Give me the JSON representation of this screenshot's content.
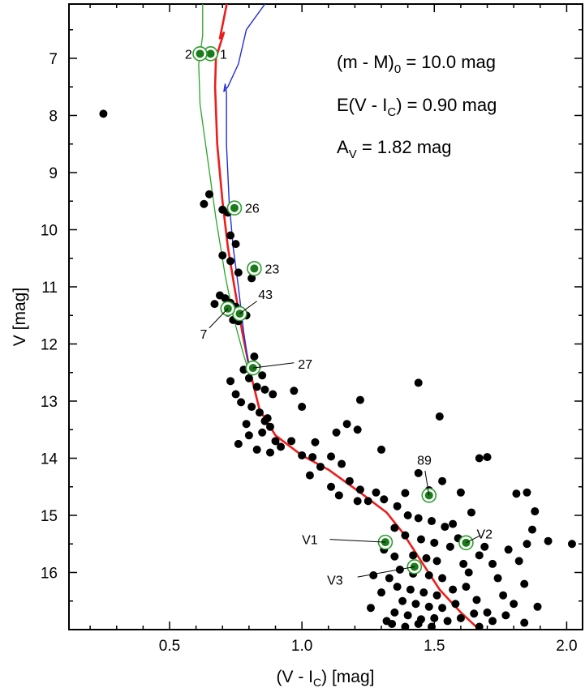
{
  "chart_data": {
    "type": "scatter",
    "title": "",
    "xlabel": "(V - I_C) [mag]",
    "ylabel": "V [mag]",
    "xlim": [
      0.12,
      2.06
    ],
    "ylim": [
      17.0,
      6.05
    ],
    "y_inverted": true,
    "xticks": [
      "0.5",
      "1.0",
      "1.5",
      "2.0"
    ],
    "xtick_values": [
      0.5,
      1.0,
      1.5,
      2.0
    ],
    "yticks": [
      "7",
      "8",
      "9",
      "10",
      "11",
      "12",
      "13",
      "14",
      "15",
      "16"
    ],
    "ytick_values": [
      7,
      8,
      9,
      10,
      11,
      12,
      13,
      14,
      15,
      16
    ],
    "annotations": {
      "distance_modulus": {
        "main": "(m - M)",
        "sub": "0",
        "rest": " = 10.0 mag"
      },
      "reddening": {
        "main": "E(V - I",
        "sub": "C",
        "rest": ") = 0.90 mag"
      },
      "extinction": {
        "main": "A",
        "sub": "V",
        "rest": " = 1.82 mag"
      }
    },
    "colors": {
      "field_star": "#000000",
      "highlight_fill": "#1b7a1b",
      "highlight_ring": "#2e9e2e",
      "isochrone_main": "#ee1c1c",
      "isochrone_blue": "#1f2fd6",
      "isochrone_green": "#2aa52a"
    },
    "field_stars": [
      [
        0.25,
        7.97
      ],
      [
        0.63,
        9.55
      ],
      [
        0.65,
        9.38
      ],
      [
        0.7,
        9.65
      ],
      [
        0.72,
        9.7
      ],
      [
        0.73,
        10.1
      ],
      [
        0.7,
        10.45
      ],
      [
        0.73,
        10.55
      ],
      [
        0.75,
        10.25
      ],
      [
        0.76,
        10.75
      ],
      [
        0.67,
        11.3
      ],
      [
        0.69,
        11.15
      ],
      [
        0.71,
        11.2
      ],
      [
        0.73,
        11.28
      ],
      [
        0.75,
        11.35
      ],
      [
        0.72,
        11.45
      ],
      [
        0.77,
        11.42
      ],
      [
        0.79,
        11.5
      ],
      [
        0.74,
        11.58
      ],
      [
        0.76,
        11.6
      ],
      [
        0.81,
        10.85
      ],
      [
        0.82,
        12.22
      ],
      [
        0.78,
        12.45
      ],
      [
        0.8,
        12.6
      ],
      [
        0.83,
        12.4
      ],
      [
        0.85,
        12.55
      ],
      [
        0.73,
        12.65
      ],
      [
        0.75,
        12.88
      ],
      [
        0.77,
        13.02
      ],
      [
        0.83,
        12.75
      ],
      [
        0.86,
        12.8
      ],
      [
        0.89,
        12.88
      ],
      [
        0.81,
        13.1
      ],
      [
        0.84,
        13.2
      ],
      [
        0.87,
        13.3
      ],
      [
        0.79,
        13.4
      ],
      [
        0.76,
        13.75
      ],
      [
        0.8,
        13.6
      ],
      [
        0.85,
        13.55
      ],
      [
        0.88,
        13.45
      ],
      [
        0.9,
        13.7
      ],
      [
        0.83,
        13.85
      ],
      [
        0.88,
        13.9
      ],
      [
        0.92,
        13.8
      ],
      [
        0.96,
        13.7
      ],
      [
        0.86,
        13.35
      ],
      [
        0.97,
        12.82
      ],
      [
        1.0,
        13.1
      ],
      [
        1.0,
        13.95
      ],
      [
        1.04,
        13.98
      ],
      [
        1.07,
        14.15
      ],
      [
        1.11,
        13.97
      ],
      [
        1.15,
        14.1
      ],
      [
        1.03,
        14.3
      ],
      [
        1.13,
        13.55
      ],
      [
        1.17,
        13.4
      ],
      [
        1.21,
        13.5
      ],
      [
        1.05,
        13.72
      ],
      [
        1.11,
        14.5
      ],
      [
        1.14,
        14.65
      ],
      [
        1.18,
        14.4
      ],
      [
        1.22,
        14.55
      ],
      [
        1.28,
        14.6
      ],
      [
        1.31,
        14.72
      ],
      [
        1.25,
        14.75
      ],
      [
        1.21,
        14.75
      ],
      [
        1.3,
        13.85
      ],
      [
        1.22,
        12.98
      ],
      [
        1.44,
        12.68
      ],
      [
        1.52,
        13.27
      ],
      [
        1.36,
        14.84
      ],
      [
        1.44,
        14.26
      ],
      [
        1.39,
        14.61
      ],
      [
        1.48,
        14.56
      ],
      [
        1.53,
        14.4
      ],
      [
        1.4,
        15.0
      ],
      [
        1.44,
        15.05
      ],
      [
        1.49,
        15.1
      ],
      [
        1.54,
        15.2
      ],
      [
        1.35,
        15.22
      ],
      [
        1.39,
        15.35
      ],
      [
        1.45,
        15.42
      ],
      [
        1.5,
        15.48
      ],
      [
        1.31,
        15.6
      ],
      [
        1.35,
        15.72
      ],
      [
        1.42,
        15.7
      ],
      [
        1.47,
        15.75
      ],
      [
        1.51,
        15.8
      ],
      [
        1.37,
        15.95
      ],
      [
        1.42,
        16.02
      ],
      [
        1.48,
        16.05
      ],
      [
        1.53,
        16.1
      ],
      [
        1.33,
        16.1
      ],
      [
        1.36,
        16.25
      ],
      [
        1.41,
        16.3
      ],
      [
        1.46,
        16.35
      ],
      [
        1.51,
        16.4
      ],
      [
        1.57,
        16.3
      ],
      [
        1.38,
        16.5
      ],
      [
        1.43,
        16.55
      ],
      [
        1.48,
        16.6
      ],
      [
        1.53,
        16.62
      ],
      [
        1.58,
        16.55
      ],
      [
        1.35,
        16.7
      ],
      [
        1.4,
        16.75
      ],
      [
        1.45,
        16.82
      ],
      [
        1.5,
        16.8
      ],
      [
        1.55,
        16.85
      ],
      [
        1.6,
        16.8
      ],
      [
        1.65,
        16.72
      ],
      [
        1.34,
        16.9
      ],
      [
        1.39,
        16.95
      ],
      [
        1.44,
        16.9
      ],
      [
        1.49,
        16.95
      ],
      [
        1.27,
        16.05
      ],
      [
        1.3,
        16.35
      ],
      [
        1.26,
        16.62
      ],
      [
        1.32,
        16.85
      ],
      [
        1.56,
        15.55
      ],
      [
        1.59,
        15.4
      ],
      [
        1.61,
        15.85
      ],
      [
        1.63,
        16.0
      ],
      [
        1.67,
        15.7
      ],
      [
        1.69,
        15.55
      ],
      [
        1.72,
        15.85
      ],
      [
        1.74,
        16.1
      ],
      [
        1.78,
        15.6
      ],
      [
        1.82,
        15.8
      ],
      [
        1.85,
        15.5
      ],
      [
        1.87,
        15.25
      ],
      [
        1.76,
        16.4
      ],
      [
        1.8,
        16.55
      ],
      [
        1.84,
        16.2
      ],
      [
        1.7,
        16.7
      ],
      [
        1.67,
        16.95
      ],
      [
        1.72,
        16.85
      ],
      [
        1.77,
        16.75
      ],
      [
        1.89,
        16.6
      ],
      [
        1.84,
        16.88
      ],
      [
        1.93,
        15.45
      ],
      [
        2.02,
        15.5
      ],
      [
        1.81,
        14.62
      ],
      [
        1.85,
        14.6
      ],
      [
        1.88,
        14.93
      ],
      [
        1.67,
        14.0
      ],
      [
        1.7,
        13.98
      ],
      [
        1.6,
        14.6
      ],
      [
        1.64,
        14.95
      ],
      [
        1.57,
        15.15
      ],
      [
        1.62,
        16.25
      ],
      [
        1.66,
        16.48
      ]
    ],
    "highlighted_stars": [
      {
        "label": "1",
        "x": 0.655,
        "y": 6.92
      },
      {
        "label": "2",
        "x": 0.615,
        "y": 6.92
      },
      {
        "label": "26",
        "x": 0.745,
        "y": 9.62
      },
      {
        "label": "23",
        "x": 0.82,
        "y": 10.68
      },
      {
        "label": "43",
        "x": 0.765,
        "y": 11.47
      },
      {
        "label": "7",
        "x": 0.72,
        "y": 11.38
      },
      {
        "label": "27",
        "x": 0.815,
        "y": 12.42
      },
      {
        "label": "89",
        "x": 1.48,
        "y": 14.65
      },
      {
        "label": "V1",
        "x": 1.315,
        "y": 15.47
      },
      {
        "label": "V2",
        "x": 1.62,
        "y": 15.48
      },
      {
        "label": "V3",
        "x": 1.425,
        "y": 15.9
      }
    ],
    "isochrones": [
      {
        "color_key": "isochrone_main",
        "width": 2.6,
        "points": [
          [
            0.716,
            6.05
          ],
          [
            0.69,
            6.65
          ],
          [
            0.705,
            6.55
          ],
          [
            0.675,
            7.0
          ],
          [
            0.672,
            7.5
          ],
          [
            0.68,
            8.5
          ],
          [
            0.7,
            9.5
          ],
          [
            0.72,
            10.3
          ],
          [
            0.745,
            11.0
          ],
          [
            0.775,
            11.8
          ],
          [
            0.805,
            12.5
          ],
          [
            0.84,
            13.15
          ],
          [
            0.9,
            13.6
          ],
          [
            1.0,
            13.95
          ],
          [
            1.1,
            14.2
          ],
          [
            1.22,
            14.6
          ],
          [
            1.32,
            14.95
          ],
          [
            1.38,
            15.3
          ],
          [
            1.45,
            15.8
          ],
          [
            1.52,
            16.3
          ],
          [
            1.6,
            16.7
          ],
          [
            1.67,
            17.0
          ]
        ]
      },
      {
        "color_key": "isochrone_blue",
        "width": 1.4,
        "points": [
          [
            0.86,
            6.05
          ],
          [
            0.79,
            6.5
          ],
          [
            0.76,
            7.1
          ],
          [
            0.72,
            7.5
          ],
          [
            0.705,
            7.58
          ],
          [
            0.71,
            7.45
          ],
          [
            0.715,
            7.6
          ],
          [
            0.715,
            8.5
          ],
          [
            0.725,
            9.5
          ],
          [
            0.74,
            10.3
          ],
          [
            0.76,
            11.0
          ],
          [
            0.78,
            11.8
          ],
          [
            0.8,
            12.4
          ]
        ]
      },
      {
        "color_key": "isochrone_green",
        "width": 1.3,
        "points": [
          [
            0.625,
            6.05
          ],
          [
            0.625,
            6.6
          ],
          [
            0.61,
            7.1
          ],
          [
            0.615,
            7.8
          ],
          [
            0.645,
            8.8
          ],
          [
            0.675,
            9.8
          ],
          [
            0.71,
            10.8
          ],
          [
            0.745,
            11.6
          ],
          [
            0.78,
            12.2
          ],
          [
            0.8,
            12.5
          ]
        ]
      }
    ],
    "label_positions_unit": "data",
    "label_positions": {
      "1": {
        "tx": 0.69,
        "ty": 6.92,
        "anchor": "start"
      },
      "2": {
        "tx": 0.585,
        "ty": 6.92,
        "anchor": "end"
      },
      "26": {
        "tx": 0.785,
        "ty": 9.62,
        "anchor": "start"
      },
      "23": {
        "tx": 0.86,
        "ty": 10.68,
        "anchor": "start"
      },
      "43": {
        "tx": 0.835,
        "ty": 11.13,
        "anchor": "start",
        "lx": 0.83,
        "ly": 11.25
      },
      "7": {
        "tx": 0.615,
        "ty": 11.82,
        "anchor": "start",
        "lx": 0.65,
        "ly": 11.72
      },
      "27": {
        "tx": 0.985,
        "ty": 12.35,
        "anchor": "start",
        "lx": 0.97,
        "ly": 12.33
      },
      "89": {
        "tx": 1.435,
        "ty": 14.03,
        "anchor": "start",
        "lx": 1.465,
        "ly": 14.22
      },
      "V1": {
        "tx": 1.0,
        "ty": 15.42,
        "anchor": "start",
        "lx": 1.105,
        "ly": 15.42
      },
      "V2": {
        "tx": 1.66,
        "ty": 15.32,
        "anchor": "start",
        "lx": 1.675,
        "ly": 15.35
      },
      "V3": {
        "tx": 1.095,
        "ty": 16.13,
        "anchor": "start",
        "lx": 1.21,
        "ly": 16.08
      }
    }
  }
}
